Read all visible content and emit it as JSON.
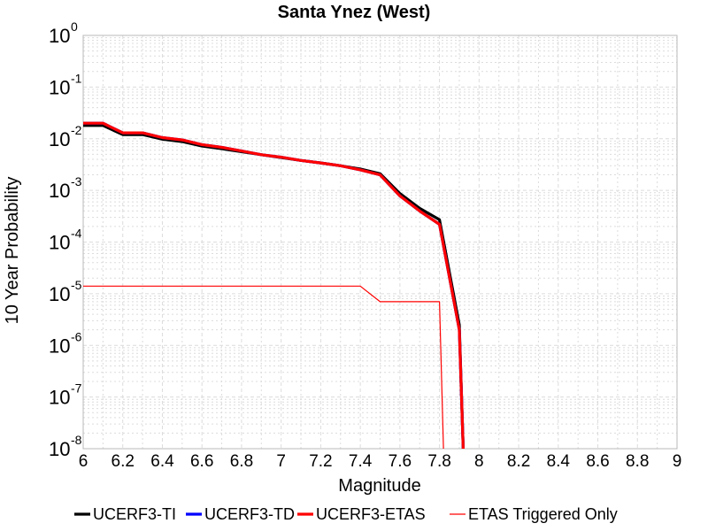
{
  "chart_data": {
    "type": "line",
    "title": "Santa Ynez (West)",
    "xlabel": "Magnitude",
    "ylabel": "10 Year Probability",
    "xlim": [
      6,
      9
    ],
    "ylim": [
      1e-08,
      1
    ],
    "yscale": "log",
    "grid": true,
    "legend_position": "bottom",
    "x_ticks": [
      "6",
      "6.2",
      "6.4",
      "6.6",
      "6.8",
      "7",
      "7.2",
      "7.4",
      "7.6",
      "7.8",
      "8",
      "8.2",
      "8.4",
      "8.6",
      "8.8",
      "9"
    ],
    "y_ticks": [
      {
        "base": "10",
        "exp": "0"
      },
      {
        "base": "10",
        "exp": "-1"
      },
      {
        "base": "10",
        "exp": "-2"
      },
      {
        "base": "10",
        "exp": "-3"
      },
      {
        "base": "10",
        "exp": "-4"
      },
      {
        "base": "10",
        "exp": "-5"
      },
      {
        "base": "10",
        "exp": "-6"
      },
      {
        "base": "10",
        "exp": "-7"
      },
      {
        "base": "10",
        "exp": "-8"
      }
    ],
    "series": [
      {
        "name": "UCERF3-TI",
        "color": "#000000",
        "x": [
          6.0,
          6.1,
          6.2,
          6.3,
          6.4,
          6.5,
          6.6,
          6.7,
          6.8,
          6.9,
          7.0,
          7.1,
          7.2,
          7.3,
          7.4,
          7.5,
          7.6,
          7.7,
          7.8,
          7.9,
          7.92
        ],
        "y": [
          0.018,
          0.018,
          0.012,
          0.012,
          0.0098,
          0.0088,
          0.0072,
          0.0064,
          0.0056,
          0.0049,
          0.0043,
          0.0038,
          0.0034,
          0.003,
          0.0026,
          0.0021,
          0.00087,
          0.00045,
          0.00027,
          2.5e-06,
          1e-08
        ]
      },
      {
        "name": "UCERF3-TD",
        "color": "#0000ff",
        "x": [
          6.0,
          6.1,
          6.2,
          6.3,
          6.4,
          6.5,
          6.6,
          6.7,
          6.8,
          6.9,
          7.0,
          7.1,
          7.2,
          7.3,
          7.4,
          7.5,
          7.6,
          7.7,
          7.8,
          7.9,
          7.92
        ],
        "y": [
          0.02,
          0.02,
          0.013,
          0.013,
          0.0105,
          0.0095,
          0.0077,
          0.0068,
          0.0058,
          0.0049,
          0.0044,
          0.0038,
          0.0034,
          0.003,
          0.0025,
          0.002,
          0.00078,
          0.0004,
          0.00022,
          2e-06,
          1e-08
        ]
      },
      {
        "name": "UCERF3-ETAS",
        "color": "#ff0000",
        "x": [
          6.0,
          6.1,
          6.2,
          6.3,
          6.4,
          6.5,
          6.6,
          6.7,
          6.8,
          6.9,
          7.0,
          7.1,
          7.2,
          7.3,
          7.4,
          7.5,
          7.6,
          7.7,
          7.8,
          7.9,
          7.92
        ],
        "y": [
          0.02,
          0.02,
          0.013,
          0.013,
          0.0105,
          0.0095,
          0.0077,
          0.0068,
          0.0058,
          0.0049,
          0.0044,
          0.0038,
          0.0034,
          0.003,
          0.0025,
          0.002,
          0.00078,
          0.0004,
          0.00022,
          2e-06,
          1e-08
        ]
      },
      {
        "name": "ETAS Triggered Only",
        "color": "#ff0000",
        "x": [
          6.0,
          7.4,
          7.5,
          7.8,
          7.82
        ],
        "y": [
          1.4e-05,
          1.4e-05,
          7e-06,
          7e-06,
          1e-08
        ]
      }
    ]
  }
}
